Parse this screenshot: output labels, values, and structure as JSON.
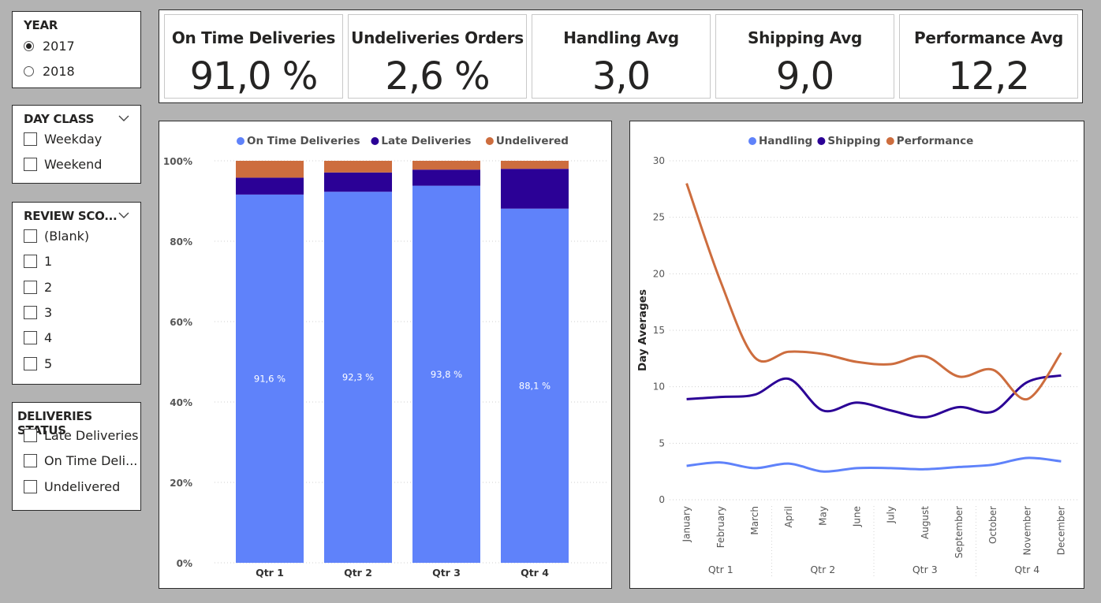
{
  "year_slicer": {
    "title": "YEAR",
    "options": [
      {
        "label": "2017",
        "selected": true
      },
      {
        "label": "2018",
        "selected": false
      }
    ]
  },
  "day_class_slicer": {
    "title": "DAY CLASS",
    "options": [
      {
        "label": "Weekday"
      },
      {
        "label": "Weekend"
      }
    ]
  },
  "review_slicer": {
    "title": "REVIEW SCO...",
    "options": [
      {
        "label": "(Blank)"
      },
      {
        "label": "1"
      },
      {
        "label": "2"
      },
      {
        "label": "3"
      },
      {
        "label": "4"
      },
      {
        "label": "5"
      }
    ]
  },
  "status_slicer": {
    "title": "DELIVERIES STATUS",
    "options": [
      {
        "label": "Late Deliveries"
      },
      {
        "label": "On Time Deli..."
      },
      {
        "label": "Undelivered"
      }
    ]
  },
  "kpis": [
    {
      "label": "On Time Deliveries",
      "value": "91,0 %"
    },
    {
      "label": "Undeliveries Orders",
      "value": "2,6 %"
    },
    {
      "label": "Handling Avg",
      "value": "3,0"
    },
    {
      "label": "Shipping Avg",
      "value": "9,0"
    },
    {
      "label": "Performance Avg",
      "value": "12,2"
    }
  ],
  "chart_data": [
    {
      "type": "bar",
      "stacked": "100%",
      "categories": [
        "Qtr 1",
        "Qtr 2",
        "Qtr 3",
        "Qtr 4"
      ],
      "series": [
        {
          "name": "On Time Deliveries",
          "color": "#5f82fa",
          "values": [
            91.6,
            92.3,
            93.8,
            88.1
          ],
          "labels": [
            "91,6 %",
            "92,3 %",
            "93,8 %",
            "88,1 %"
          ]
        },
        {
          "name": "Late Deliveries",
          "color": "#2b0196",
          "values": [
            4.2,
            4.8,
            4.0,
            9.9
          ]
        },
        {
          "name": "Undelivered",
          "color": "#cd6d3e",
          "values": [
            4.2,
            2.9,
            2.2,
            2.0
          ]
        }
      ],
      "ylim": [
        0,
        100
      ],
      "yticks": [
        "0%",
        "20%",
        "40%",
        "60%",
        "80%",
        "100%"
      ],
      "legend": "top",
      "grid": true
    },
    {
      "type": "line",
      "x": [
        "January",
        "February",
        "March",
        "April",
        "May",
        "June",
        "July",
        "August",
        "September",
        "October",
        "November",
        "December"
      ],
      "groups": [
        {
          "label": "Qtr 1",
          "count": 3
        },
        {
          "label": "Qtr 2",
          "count": 3
        },
        {
          "label": "Qtr 3",
          "count": 3
        },
        {
          "label": "Qtr 4",
          "count": 3
        }
      ],
      "series": [
        {
          "name": "Handling",
          "color": "#5f82fa",
          "values": [
            3.0,
            3.3,
            2.8,
            3.2,
            2.5,
            2.8,
            2.8,
            2.7,
            2.9,
            3.1,
            3.7,
            3.4
          ]
        },
        {
          "name": "Shipping",
          "color": "#2b0196",
          "values": [
            8.9,
            9.1,
            9.3,
            10.7,
            7.9,
            8.6,
            7.9,
            7.3,
            8.2,
            7.8,
            10.4,
            11.0
          ]
        },
        {
          "name": "Performance",
          "color": "#cd6d3e",
          "values": [
            28.0,
            19.3,
            12.6,
            13.1,
            12.9,
            12.2,
            12.0,
            12.7,
            10.9,
            11.5,
            8.9,
            13.0
          ]
        }
      ],
      "ylabel": "Day Averages",
      "ylim": [
        0,
        30
      ],
      "yticks": [
        0,
        5,
        10,
        15,
        20,
        25,
        30
      ],
      "legend": "top",
      "grid": true
    }
  ]
}
